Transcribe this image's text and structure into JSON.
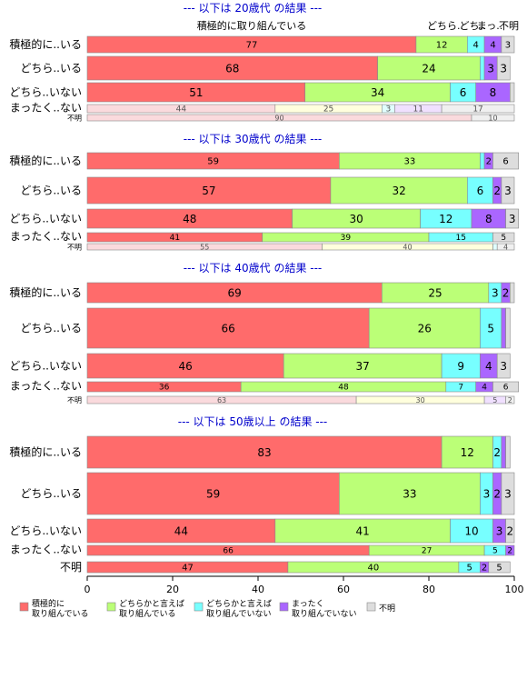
{
  "chart_data": {
    "type": "bar",
    "stacked": true,
    "orientation": "horizontal",
    "xlim": [
      0,
      100
    ],
    "x_ticks": [
      "0",
      "20",
      "40",
      "60",
      "80",
      "100"
    ],
    "grid": false,
    "legend_position": "bottom",
    "series_names": [
      "積極的に取り組んでいる",
      "どちらかと言えば取り組んでいる",
      "どちらかと言えば取り組んでいない",
      "まったく取り組んでいない",
      "不明"
    ],
    "column_headers": [
      "積極的に取り組んでいる",
      "どちら..",
      "どち..",
      "まっ..",
      "不明"
    ],
    "colors": [
      "#FF6B6B",
      "#BBFF77",
      "#77FFFF",
      "#AA66FF",
      "#DDDDDD"
    ],
    "light_colors": [
      "#FADADD",
      "#FFFFDD",
      "#E0FFFF",
      "#F0E0FF",
      "#F0F0F0"
    ],
    "legend": [
      {
        "line1": "積極的に",
        "line2": "取り組んでいる"
      },
      {
        "line1": "どちらかと言えば",
        "line2": "取り組んでいる"
      },
      {
        "line1": "どちらかと言えば",
        "line2": "取り組んでいない"
      },
      {
        "line1": "まったく",
        "line2": "取り組んでいない"
      },
      {
        "line1": "不明",
        "line2": ""
      }
    ],
    "panels": [
      {
        "title": "--- 以下は 20歳代 の結果 ---",
        "rows": [
          {
            "label": "積極的に..いる",
            "values": [
              77,
              12,
              4,
              4,
              3
            ]
          },
          {
            "label": "どちら..いる",
            "values": [
              68,
              24,
              1,
              3,
              3
            ]
          },
          {
            "label": "どちら..いない",
            "values": [
              51,
              34,
              6,
              8,
              1
            ]
          },
          {
            "label": "まったく..ない",
            "values": [
              44,
              25,
              3,
              11,
              17
            ]
          },
          {
            "label": "不明",
            "values": [
              90,
              0,
              0,
              0,
              10
            ]
          }
        ]
      },
      {
        "title": "--- 以下は 30歳代 の結果 ---",
        "rows": [
          {
            "label": "積極的に..いる",
            "values": [
              59,
              33,
              1,
              2,
              6
            ]
          },
          {
            "label": "どちら..いる",
            "values": [
              57,
              32,
              6,
              2,
              3
            ]
          },
          {
            "label": "どちら..いない",
            "values": [
              48,
              30,
              12,
              8,
              3
            ]
          },
          {
            "label": "まったく..ない",
            "values": [
              41,
              39,
              15,
              0,
              5
            ]
          },
          {
            "label": "不明",
            "values": [
              55,
              40,
              1,
              0,
              4
            ]
          }
        ]
      },
      {
        "title": "--- 以下は 40歳代 の結果 ---",
        "rows": [
          {
            "label": "積極的に..いる",
            "values": [
              69,
              25,
              3,
              2,
              1
            ]
          },
          {
            "label": "どちら..いる",
            "values": [
              66,
              26,
              5,
              1,
              1
            ]
          },
          {
            "label": "どちら..いない",
            "values": [
              46,
              37,
              9,
              4,
              3
            ]
          },
          {
            "label": "まったく..ない",
            "values": [
              36,
              48,
              7,
              4,
              6
            ]
          },
          {
            "label": "不明",
            "values": [
              63,
              30,
              0,
              5,
              2
            ]
          }
        ]
      },
      {
        "title": "--- 以下は 50歳以上 の結果 ---",
        "rows": [
          {
            "label": "積極的に..いる",
            "values": [
              83,
              12,
              2,
              1,
              1
            ]
          },
          {
            "label": "どちら..いる",
            "values": [
              59,
              33,
              3,
              2,
              3
            ]
          },
          {
            "label": "どちら..いない",
            "values": [
              44,
              41,
              10,
              3,
              2
            ]
          },
          {
            "label": "まったく..ない",
            "values": [
              66,
              27,
              5,
              2,
              0
            ]
          },
          {
            "label": "不明",
            "values": [
              47,
              40,
              5,
              2,
              5
            ]
          }
        ]
      }
    ]
  }
}
